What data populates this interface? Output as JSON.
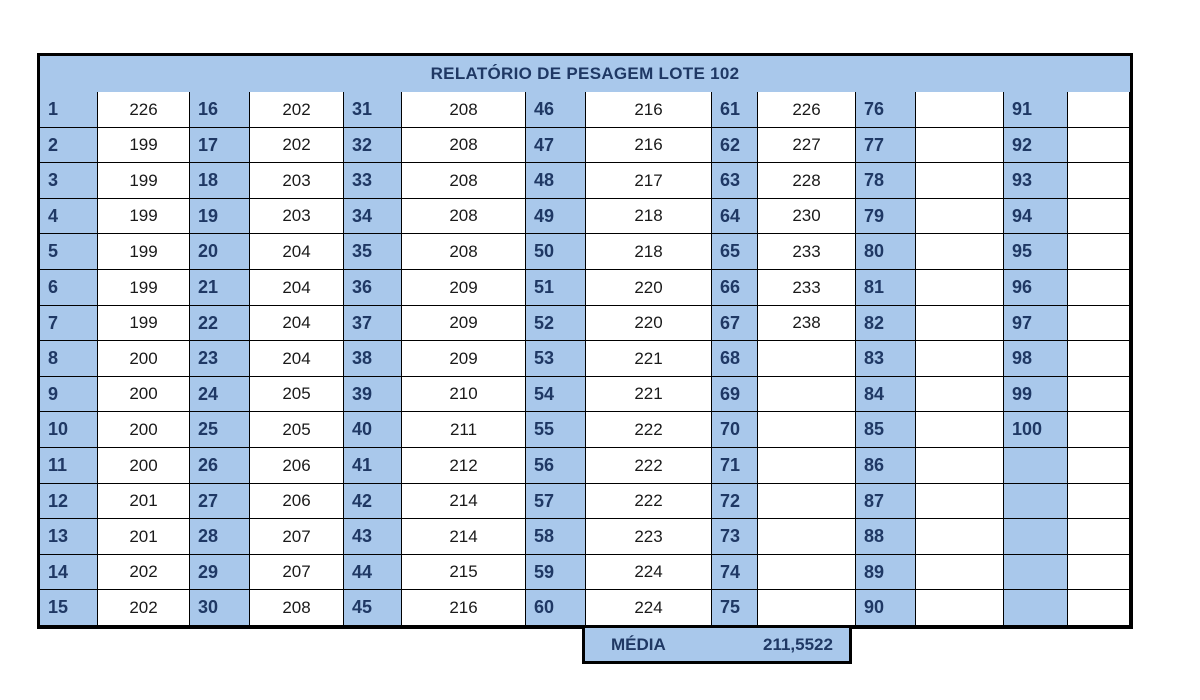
{
  "report": {
    "title": "RELATÓRIO DE PESAGEM LOTE 102",
    "columns": [
      {
        "numbers": [
          "1",
          "2",
          "3",
          "4",
          "5",
          "6",
          "7",
          "8",
          "9",
          "10",
          "11",
          "12",
          "13",
          "14",
          "15"
        ],
        "weights": [
          "226",
          "199",
          "199",
          "199",
          "199",
          "199",
          "199",
          "200",
          "200",
          "200",
          "200",
          "201",
          "201",
          "202",
          "202"
        ]
      },
      {
        "numbers": [
          "16",
          "17",
          "18",
          "19",
          "20",
          "21",
          "22",
          "23",
          "24",
          "25",
          "26",
          "27",
          "28",
          "29",
          "30"
        ],
        "weights": [
          "202",
          "202",
          "203",
          "203",
          "204",
          "204",
          "204",
          "204",
          "205",
          "205",
          "206",
          "206",
          "207",
          "207",
          "208"
        ]
      },
      {
        "numbers": [
          "31",
          "32",
          "33",
          "34",
          "35",
          "36",
          "37",
          "38",
          "39",
          "40",
          "41",
          "42",
          "43",
          "44",
          "45"
        ],
        "weights": [
          "208",
          "208",
          "208",
          "208",
          "208",
          "209",
          "209",
          "209",
          "210",
          "211",
          "212",
          "214",
          "214",
          "215",
          "216"
        ]
      },
      {
        "numbers": [
          "46",
          "47",
          "48",
          "49",
          "50",
          "51",
          "52",
          "53",
          "54",
          "55",
          "56",
          "57",
          "58",
          "59",
          "60"
        ],
        "weights": [
          "216",
          "216",
          "217",
          "218",
          "218",
          "220",
          "220",
          "221",
          "221",
          "222",
          "222",
          "222",
          "223",
          "224",
          "224"
        ]
      },
      {
        "numbers": [
          "61",
          "62",
          "63",
          "64",
          "65",
          "66",
          "67",
          "68",
          "69",
          "70",
          "71",
          "72",
          "73",
          "74",
          "75"
        ],
        "weights": [
          "226",
          "227",
          "228",
          "230",
          "233",
          "233",
          "238",
          "",
          "",
          "",
          "",
          "",
          "",
          "",
          ""
        ]
      },
      {
        "numbers": [
          "76",
          "77",
          "78",
          "79",
          "80",
          "81",
          "82",
          "83",
          "84",
          "85",
          "86",
          "87",
          "88",
          "89",
          "90"
        ],
        "weights": [
          "",
          "",
          "",
          "",
          "",
          "",
          "",
          "",
          "",
          "",
          "",
          "",
          "",
          "",
          ""
        ]
      },
      {
        "numbers": [
          "91",
          "92",
          "93",
          "94",
          "95",
          "96",
          "97",
          "98",
          "99",
          "100",
          "",
          "",
          "",
          "",
          ""
        ],
        "weights": [
          "",
          "",
          "",
          "",
          "",
          "",
          "",
          "",
          "",
          "",
          "",
          "",
          "",
          "",
          ""
        ]
      }
    ],
    "media_label": "MÉDIA",
    "media_value": "211,5522"
  },
  "colors": {
    "header_fill": "#a9c8eb",
    "number_text": "#1f3864",
    "grid_lines": "#000000"
  }
}
